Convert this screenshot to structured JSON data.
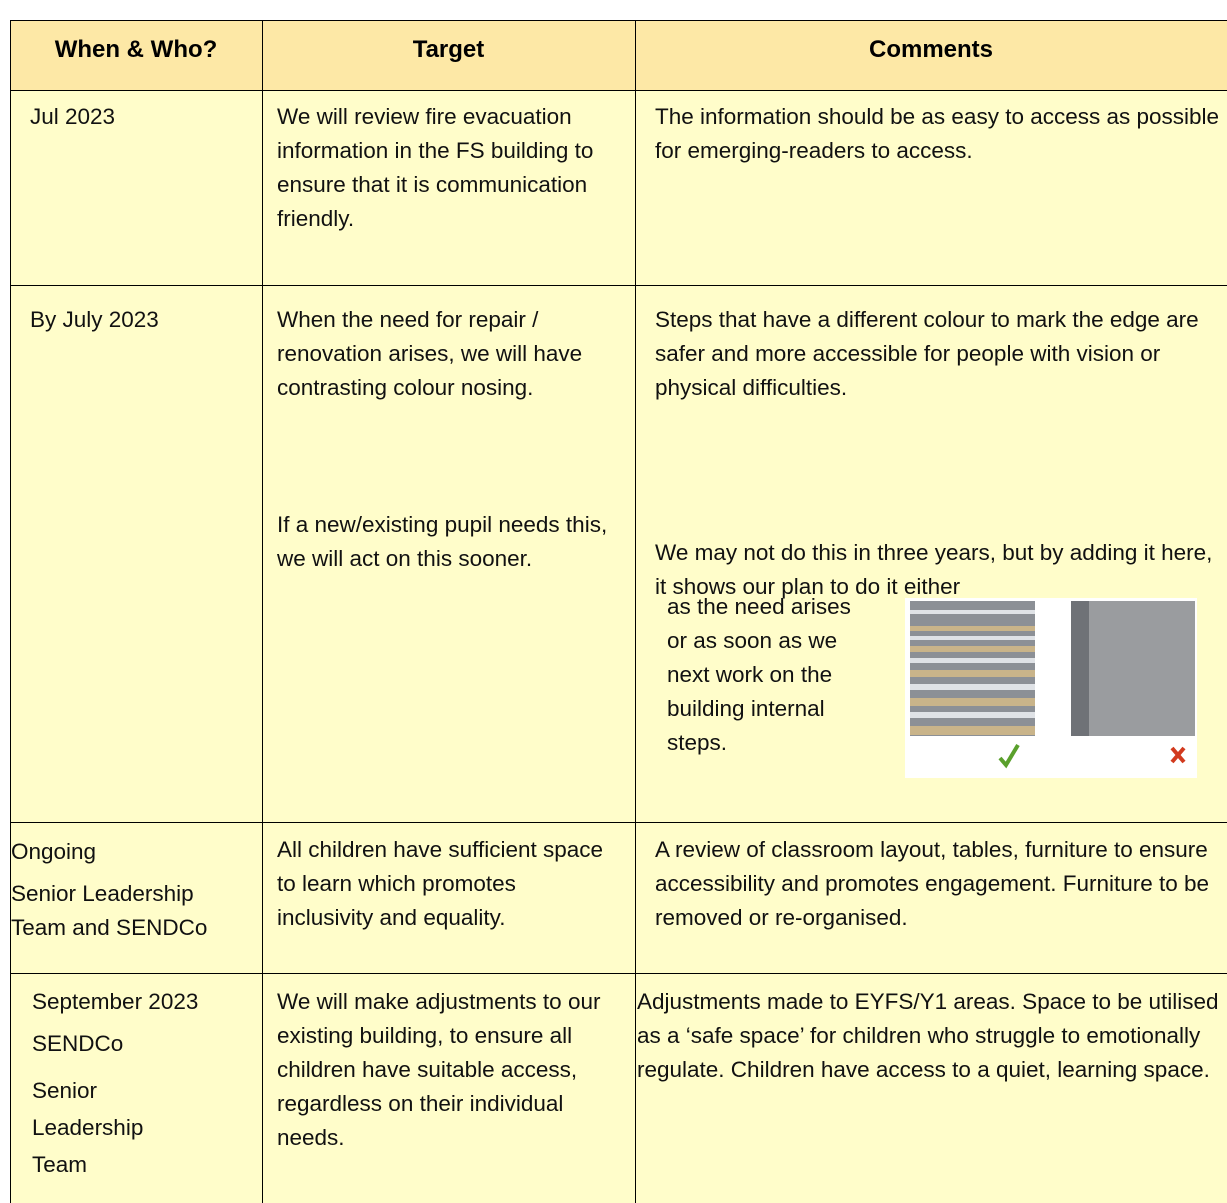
{
  "table": {
    "headers": [
      "When & Who?",
      "Target",
      "Comments"
    ],
    "rows": [
      {
        "when": [
          "Jul 2023"
        ],
        "target": [
          "We will review fire evacuation information in the FS  building to ensure that it is communication friendly."
        ],
        "comments": [
          "The information should be as easy to access as possible for emerging-readers to access."
        ]
      },
      {
        "when": [
          "By July 2023"
        ],
        "target": [
          "When the need for repair / renovation arises, we will have contrasting colour nosing.",
          "If a new/existing pupil needs this, we will act on this sooner."
        ],
        "comments": [
          "Steps that have a different colour to mark the edge are safer and more accessible for people with vision or physical difficulties.",
          "We may not do this in three years, but by adding it here, it shows our plan to do it either",
          "as the need arises or as soon as we next work on the building internal steps."
        ]
      },
      {
        "when": [
          "Ongoing",
          "Senior Leadership Team and SENDCo"
        ],
        "target": [
          "All children have sufficient space to learn which promotes inclusivity and equality."
        ],
        "comments": [
          "A review of classroom layout, tables, furniture to ensure accessibility and promotes engagement. Furniture to be removed or re-organised."
        ]
      },
      {
        "when": [
          "September 2023",
          "SENDCo",
          "Senior Leadership Team"
        ],
        "target": [
          "We will make adjustments to our existing building, to ensure all children have suitable access, regardless on their individual needs."
        ],
        "comments": [
          "Adjustments made to EYFS/Y1 areas. Space to be utilised as a ‘safe space’ for children who struggle to emotionally regulate. Children have access to a quiet, learning space."
        ]
      }
    ]
  }
}
